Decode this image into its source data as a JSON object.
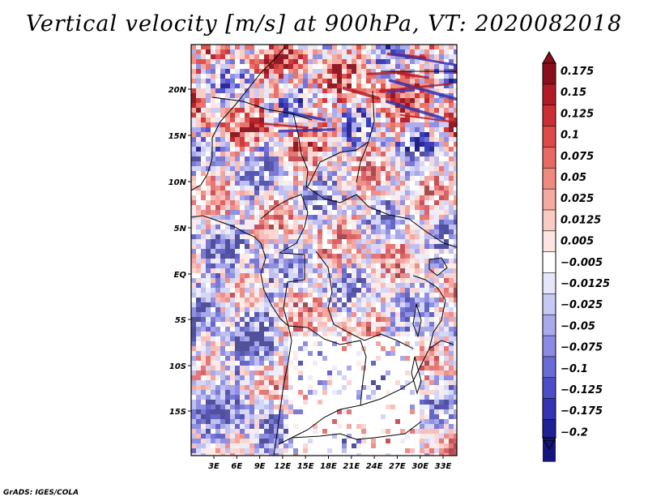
{
  "title": "Vertical velocity [m/s] at 900hPa, VT: 2020082018",
  "credit": "GrADS: IGES/COLA",
  "map": {
    "projection": "lat-lon",
    "lon_range": [
      0,
      35
    ],
    "lat_range": [
      -20,
      25
    ],
    "lat_ticks": [
      "20N",
      "15N",
      "10N",
      "5N",
      "EQ",
      "5S",
      "10S",
      "15S"
    ],
    "lon_ticks": [
      "3E",
      "6E",
      "9E",
      "12E",
      "15E",
      "18E",
      "21E",
      "24E",
      "27E",
      "30E",
      "33E"
    ]
  },
  "colorbar": {
    "labels": [
      "0.175",
      "0.15",
      "0.125",
      "0.1",
      "0.075",
      "0.05",
      "0.025",
      "0.0125",
      "0.005",
      "−0.005",
      "−0.0125",
      "−0.025",
      "−0.05",
      "−0.075",
      "−0.1",
      "−0.125",
      "−0.175",
      "−0.2"
    ],
    "colors": [
      "#8b0f1a",
      "#b41a25",
      "#cc2f33",
      "#dd4a48",
      "#e86a63",
      "#f08a80",
      "#f5a9a0",
      "#facac4",
      "#fde6e2",
      "#ffffff",
      "#e6e6fb",
      "#c8c8f4",
      "#a9a9ec",
      "#8b8be3",
      "#6b6bd8",
      "#4d4dc8",
      "#3333b3",
      "#1f1f96",
      "#15157a"
    ]
  },
  "chart_data": {
    "type": "heatmap",
    "title": "Vertical velocity [m/s] at 900hPa, VT: 2020082018",
    "variable": "vertical velocity",
    "units": "m/s",
    "level": "900hPa",
    "valid_time": "2020082018",
    "x_ticks": [
      "3E",
      "6E",
      "9E",
      "12E",
      "15E",
      "18E",
      "21E",
      "24E",
      "27E",
      "30E",
      "33E"
    ],
    "y_ticks": [
      "20N",
      "15N",
      "10N",
      "5N",
      "EQ",
      "5S",
      "10S",
      "15S"
    ],
    "contour_levels": [
      0.175,
      0.15,
      0.125,
      0.1,
      0.075,
      0.05,
      0.025,
      0.0125,
      0.005,
      -0.005,
      -0.0125,
      -0.025,
      -0.05,
      -0.075,
      -0.1,
      -0.125,
      -0.175,
      -0.2
    ],
    "color_range": [
      -0.2,
      0.175
    ]
  }
}
